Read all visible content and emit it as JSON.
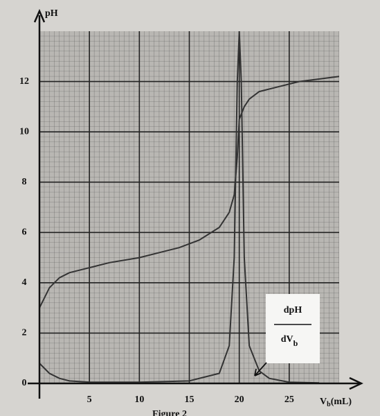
{
  "chart_data": {
    "type": "line",
    "y_label": "pH",
    "x_label": {
      "main": "V",
      "sub": "b",
      "unit": "(mL)"
    },
    "caption": "Figure 2",
    "annotation": {
      "numerator": "dpH",
      "denominator": "dV",
      "sub": "b"
    },
    "xlim": [
      0,
      30
    ],
    "ylim": [
      0,
      14
    ],
    "xticks": [
      5,
      10,
      15,
      20,
      25
    ],
    "yticks": [
      0,
      2,
      4,
      6,
      8,
      10,
      12
    ],
    "grid": true,
    "series": [
      {
        "color": "#333333",
        "x": [
          0,
          1,
          2,
          3,
          5,
          7,
          10,
          12,
          14,
          16,
          18,
          19,
          19.5,
          19.8,
          20,
          20.5,
          21,
          22,
          24,
          26,
          30
        ],
        "values": [
          3.0,
          3.8,
          4.2,
          4.4,
          4.6,
          4.8,
          5.0,
          5.2,
          5.4,
          5.7,
          6.2,
          6.8,
          7.5,
          9.0,
          10.5,
          11.0,
          11.3,
          11.6,
          11.8,
          12.0,
          12.2
        ]
      },
      {
        "color": "#333333",
        "x": [
          0,
          1,
          2,
          3,
          5,
          10,
          15,
          18,
          19,
          19.5,
          19.8,
          20,
          20.2,
          20.5,
          21,
          22,
          23,
          25,
          28
        ],
        "values": [
          0.8,
          0.4,
          0.2,
          0.1,
          0.05,
          0.05,
          0.1,
          0.4,
          1.5,
          5,
          12,
          14,
          12,
          5,
          1.5,
          0.5,
          0.2,
          0.05,
          0.02
        ]
      }
    ]
  }
}
